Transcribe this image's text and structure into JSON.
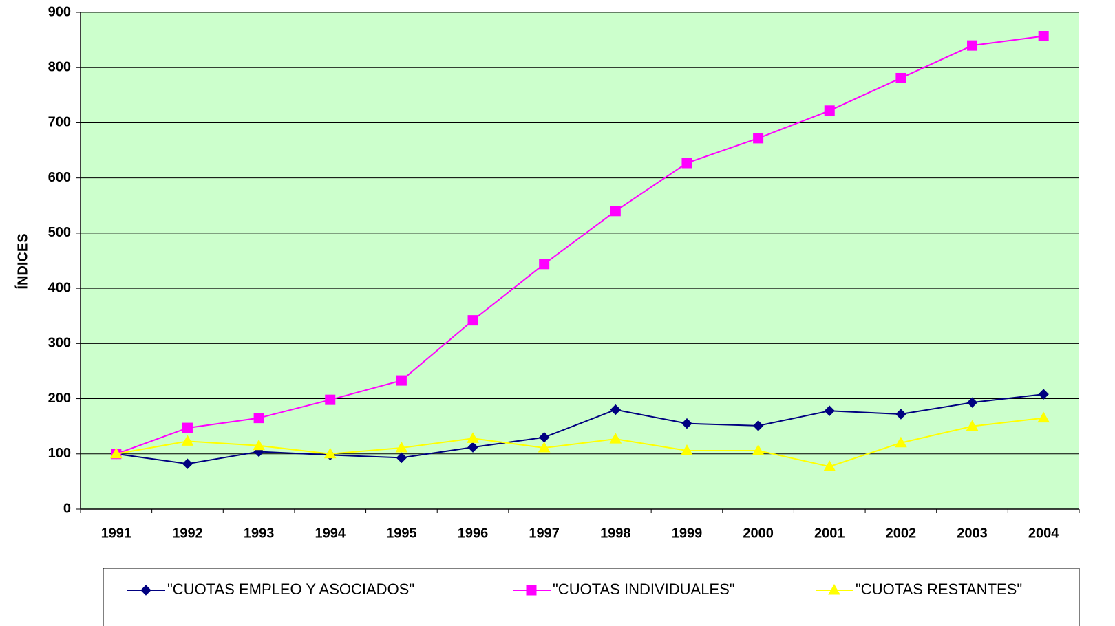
{
  "chart_data": {
    "type": "line",
    "y_label": "ÍNDICES",
    "categories": [
      "1991",
      "1992",
      "1993",
      "1994",
      "1995",
      "1996",
      "1997",
      "1998",
      "1999",
      "2000",
      "2001",
      "2002",
      "2003",
      "2004"
    ],
    "series": [
      {
        "name": "\"CUOTAS EMPLEO Y ASOCIADOS\"",
        "color": "#000080",
        "marker": "diamond",
        "values": [
          100,
          82,
          104,
          98,
          93,
          112,
          130,
          180,
          155,
          151,
          178,
          172,
          193,
          208
        ]
      },
      {
        "name": "\"CUOTAS INDIVIDUALES\"",
        "color": "#ff00ff",
        "marker": "square",
        "values": [
          100,
          147,
          165,
          198,
          233,
          342,
          444,
          540,
          627,
          672,
          722,
          781,
          840,
          857
        ]
      },
      {
        "name": "\"CUOTAS RESTANTES\"",
        "color": "#ffff00",
        "marker": "triangle",
        "values": [
          100,
          123,
          115,
          100,
          111,
          128,
          111,
          127,
          106,
          106,
          77,
          120,
          150,
          165
        ]
      }
    ],
    "ylim": [
      0,
      900
    ],
    "yticks": [
      0,
      100,
      200,
      300,
      400,
      500,
      600,
      700,
      800,
      900
    ],
    "grid": true,
    "plot_background": "#ccffcc",
    "legend": "bottom"
  }
}
